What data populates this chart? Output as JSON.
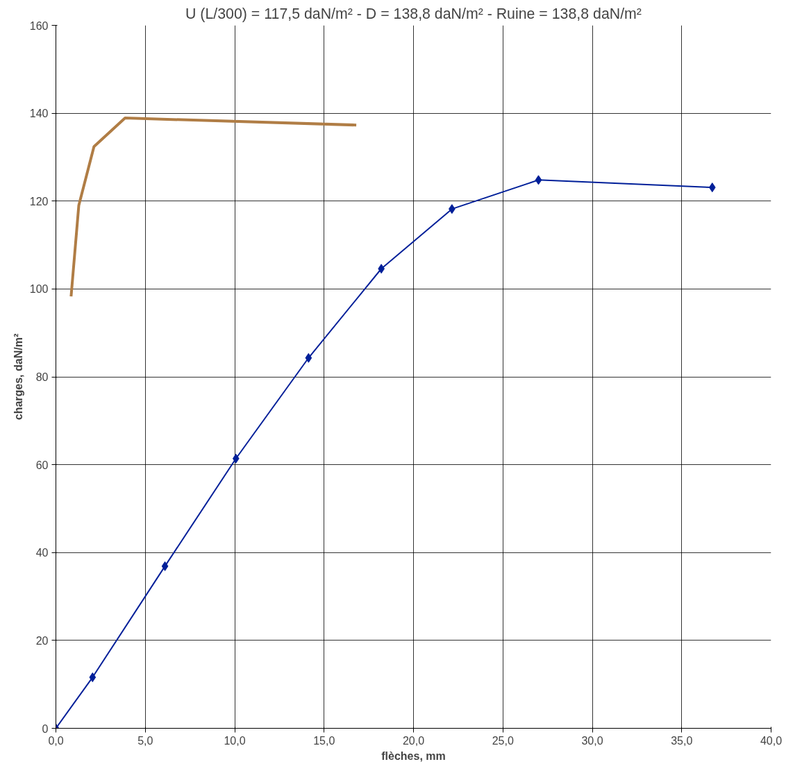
{
  "chart_data": {
    "type": "line",
    "title": "U (L/300) = 117,5 daN/m² - D = 138,8 daN/m² - Ruine = 138,8 daN/m²",
    "xlabel": "flèches, mm",
    "ylabel": "charges, daN/m²",
    "series": [
      {
        "color": "#b07d45",
        "marker": "none",
        "x": [
          0.85,
          1.28,
          2.13,
          3.87,
          16.8
        ],
        "values": [
          98.3,
          119.0,
          132.4,
          138.9,
          137.3
        ]
      },
      {
        "color": "#001f99",
        "marker": "diamond",
        "x": [
          0,
          2.05,
          6.1,
          10.07,
          14.13,
          18.2,
          22.15,
          26.99,
          36.71
        ],
        "values": [
          0,
          11.6,
          36.9,
          61.4,
          84.3,
          104.6,
          118.2,
          124.8,
          123.1
        ]
      }
    ],
    "xlim": [
      0,
      40
    ],
    "ylim": [
      0,
      160
    ],
    "xticks": [
      {
        "value": 0,
        "label": "0,0"
      },
      {
        "value": 5,
        "label": "5,0"
      },
      {
        "value": 10,
        "label": "10,0"
      },
      {
        "value": 15,
        "label": "15,0"
      },
      {
        "value": 20,
        "label": "20,0"
      },
      {
        "value": 25,
        "label": "25,0"
      },
      {
        "value": 30,
        "label": "30,0"
      },
      {
        "value": 35,
        "label": "35,0"
      },
      {
        "value": 40,
        "label": "40,0"
      }
    ],
    "yticks": [
      0,
      20,
      40,
      60,
      80,
      100,
      120,
      140,
      160
    ],
    "grid": true
  }
}
